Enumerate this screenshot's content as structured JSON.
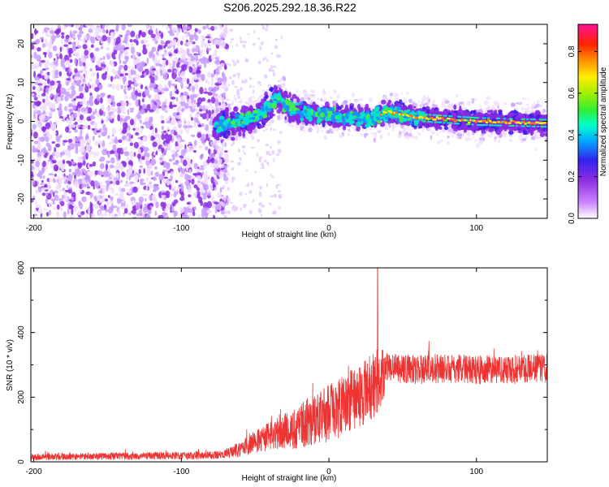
{
  "title": "S206.2025.292.18.36.R22",
  "colors": {
    "signal": "#ee3333",
    "background": "#ffffff",
    "axis": "#000000",
    "purple": "#8a2be2"
  },
  "chart_data": [
    {
      "type": "heatmap",
      "xlabel": "Height of straight line (km)",
      "ylabel": "Frequency (Hz)",
      "xlim": [
        -202,
        148
      ],
      "ylim": [
        -25,
        25
      ],
      "xticks": [
        -200,
        -100,
        0,
        100
      ],
      "yticks": [
        -20,
        -10,
        0,
        10,
        20
      ],
      "colorbar": {
        "label": "Normalized spectral amplitude",
        "range": [
          0.0,
          0.93
        ],
        "ticks": [
          0.0,
          0.2,
          0.4,
          0.6,
          0.8
        ]
      },
      "ridge": [
        {
          "x": -80,
          "y": -1
        },
        {
          "x": -60,
          "y": 0
        },
        {
          "x": -45,
          "y": 2
        },
        {
          "x": -35,
          "y": 6
        },
        {
          "x": -25,
          "y": 3
        },
        {
          "x": -10,
          "y": 2
        },
        {
          "x": 10,
          "y": 1
        },
        {
          "x": 30,
          "y": 1
        },
        {
          "x": 40,
          "y": 2.5
        },
        {
          "x": 60,
          "y": 1
        },
        {
          "x": 100,
          "y": 0
        },
        {
          "x": 148,
          "y": -0.5
        }
      ],
      "noise_region_x": [
        -202,
        -77
      ],
      "high_amplitude_region_x": [
        35,
        148
      ]
    },
    {
      "type": "line",
      "xlabel": "Height of straight line (km)",
      "ylabel": "SNR (10 * v/v)",
      "xlim": [
        -202,
        148
      ],
      "ylim": [
        0,
        600
      ],
      "xticks": [
        -200,
        -100,
        0,
        100
      ],
      "yticks": [
        0,
        200,
        400,
        600
      ],
      "series": [
        {
          "name": "SNR",
          "envelope_x": [
            -202,
            -80,
            -70,
            -60,
            -50,
            -40,
            -30,
            -20,
            -10,
            0,
            10,
            20,
            30,
            35,
            40,
            45,
            60,
            80,
            100,
            120,
            148
          ],
          "envelope_mean": [
            15,
            20,
            25,
            40,
            60,
            80,
            95,
            110,
            130,
            150,
            175,
            200,
            240,
            260,
            290,
            290,
            285,
            290,
            285,
            285,
            290
          ],
          "envelope_spread": [
            10,
            12,
            15,
            25,
            35,
            45,
            55,
            70,
            80,
            90,
            95,
            100,
            105,
            100,
            45,
            45,
            45,
            45,
            45,
            45,
            45
          ],
          "peak": {
            "x": 33,
            "y": 600
          }
        }
      ]
    }
  ]
}
